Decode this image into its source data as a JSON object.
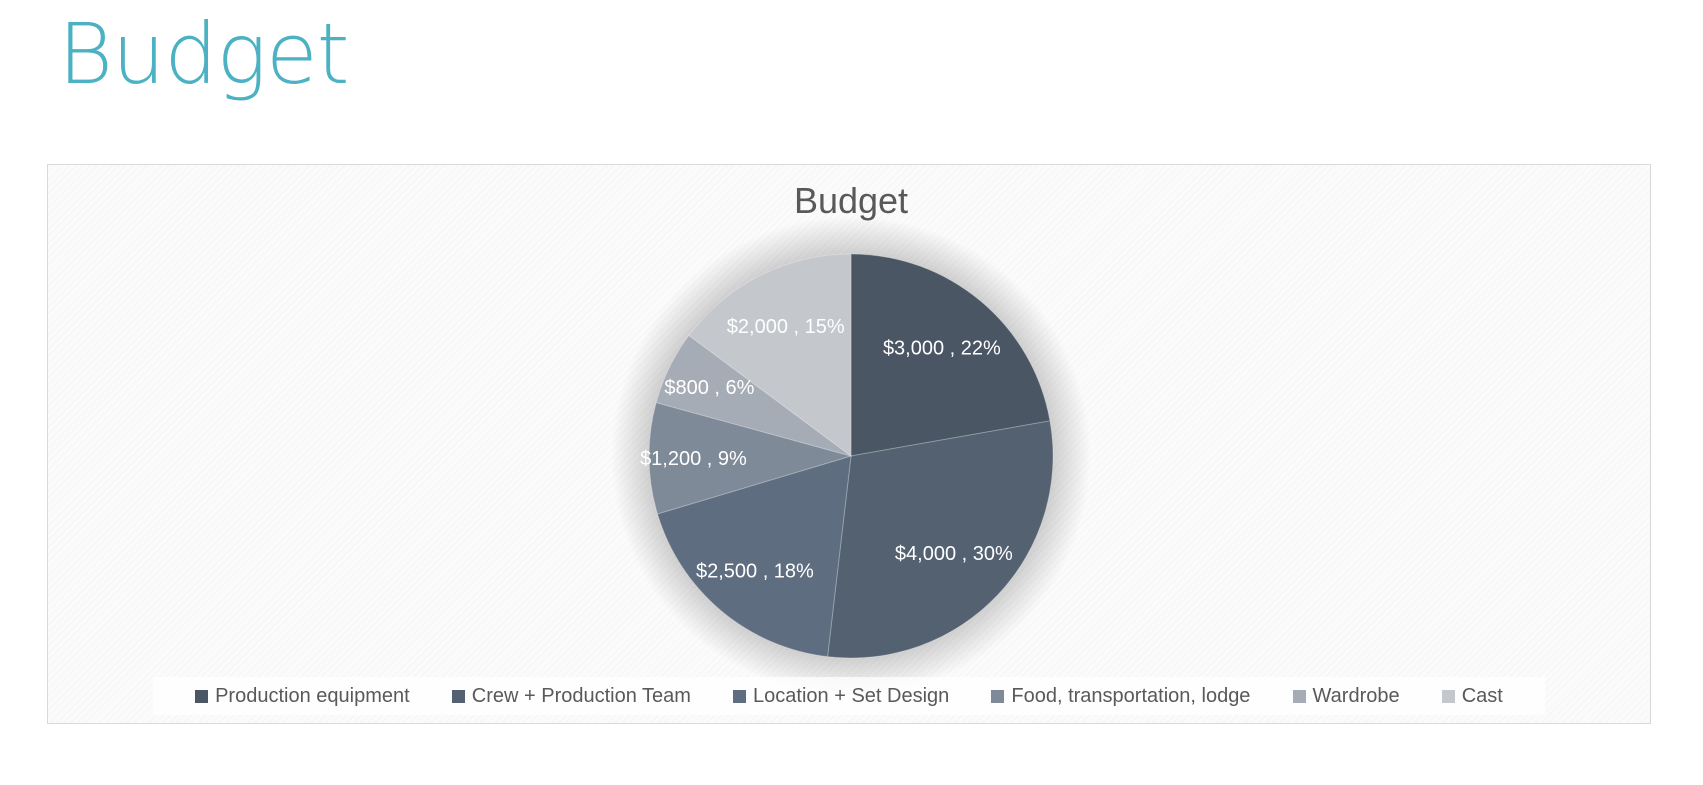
{
  "page": {
    "title": "Budget"
  },
  "chart_data": {
    "type": "pie",
    "title": "Budget",
    "legend_position": "bottom",
    "categories": [
      "Production equipment",
      "Crew + Production Team",
      "Location + Set Design",
      "Food, transportation, lodge",
      "Wardrobe",
      "Cast"
    ],
    "values": [
      3000,
      4000,
      2500,
      1200,
      800,
      2000
    ],
    "value_labels": [
      "$3,000",
      "$4,000",
      "$2,500",
      "$1,200",
      "$800",
      "$2,000"
    ],
    "percent_labels": [
      "22%",
      "30%",
      "18%",
      "9%",
      "6%",
      "15%"
    ],
    "colors": [
      "#4a5664",
      "#536171",
      "#5e6d80",
      "#7f8a98",
      "#a6acb5",
      "#c4c7cc"
    ]
  }
}
